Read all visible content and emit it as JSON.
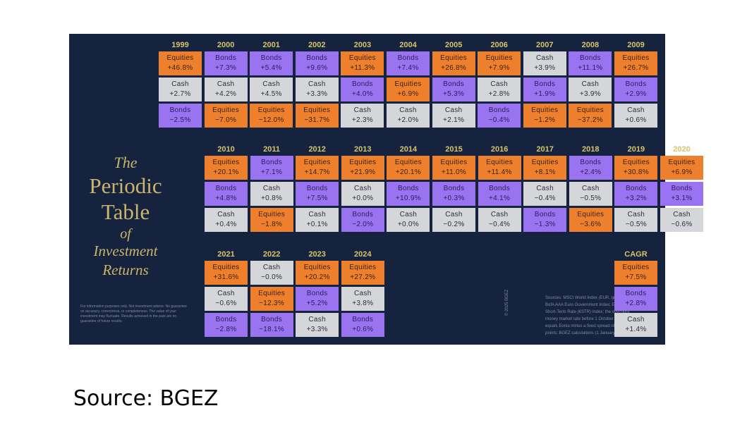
{
  "title": {
    "line1": "The",
    "line2": "Periodic",
    "line3": "Table",
    "line4": "of",
    "line5": "Investment",
    "line6": "Returns"
  },
  "disclaimer": "For information purposes only. Not investment advice. No guarantee on accuracy, correctness, or completeness. The value of your investment may fluctuate. Results achieved in the past are no guarantee of future results.",
  "sources": "Sources: MSCI World Index (EUR, gross); ICE BofA AAA Euro Government Index; Euro Short-Term Rate (€STR) Index; the overnight money market rate before 1 October 2019 equals Eonia minus a fixed spread of 8.5 basis points; BGEZ calculations (1 January 2025)",
  "copyright": "© 2025 BGEZ",
  "source_caption": "Source: BGEZ",
  "colors": {
    "background": "#15233f",
    "equities": "#ee7f2d",
    "bonds": "#9a73f0",
    "cash": "#d4d6da",
    "year": "#d6c46a",
    "title": "#cbb56a"
  },
  "chart_data": {
    "type": "table",
    "title": "The Periodic Table of Investment Returns",
    "categories": [
      "1999",
      "2000",
      "2001",
      "2002",
      "2003",
      "2004",
      "2005",
      "2006",
      "2007",
      "2008",
      "2009",
      "2010",
      "2011",
      "2012",
      "2013",
      "2014",
      "2015",
      "2016",
      "2017",
      "2018",
      "2019",
      "2020",
      "2021",
      "2022",
      "2023",
      "2024",
      "CAGR"
    ],
    "columns": [
      {
        "year": "1999",
        "cells": [
          {
            "asset": "Equities",
            "value": "+46.8%"
          },
          {
            "asset": "Cash",
            "value": "+2.7%"
          },
          {
            "asset": "Bonds",
            "value": "−2.5%"
          }
        ]
      },
      {
        "year": "2000",
        "cells": [
          {
            "asset": "Bonds",
            "value": "+7.3%"
          },
          {
            "asset": "Cash",
            "value": "+4.2%"
          },
          {
            "asset": "Equities",
            "value": "−7.0%"
          }
        ]
      },
      {
        "year": "2001",
        "cells": [
          {
            "asset": "Bonds",
            "value": "+5.4%"
          },
          {
            "asset": "Cash",
            "value": "+4.5%"
          },
          {
            "asset": "Equities",
            "value": "−12.0%"
          }
        ]
      },
      {
        "year": "2002",
        "cells": [
          {
            "asset": "Bonds",
            "value": "+9.6%"
          },
          {
            "asset": "Cash",
            "value": "+3.3%"
          },
          {
            "asset": "Equities",
            "value": "−31.7%"
          }
        ]
      },
      {
        "year": "2003",
        "cells": [
          {
            "asset": "Equities",
            "value": "+11.3%"
          },
          {
            "asset": "Bonds",
            "value": "+4.0%"
          },
          {
            "asset": "Cash",
            "value": "+2.3%"
          }
        ]
      },
      {
        "year": "2004",
        "cells": [
          {
            "asset": "Bonds",
            "value": "+7.4%"
          },
          {
            "asset": "Equities",
            "value": "+6.9%"
          },
          {
            "asset": "Cash",
            "value": "+2.0%"
          }
        ]
      },
      {
        "year": "2005",
        "cells": [
          {
            "asset": "Equities",
            "value": "+26.8%"
          },
          {
            "asset": "Bonds",
            "value": "+5.3%"
          },
          {
            "asset": "Cash",
            "value": "+2.1%"
          }
        ]
      },
      {
        "year": "2006",
        "cells": [
          {
            "asset": "Equities",
            "value": "+7.9%"
          },
          {
            "asset": "Cash",
            "value": "+2.8%"
          },
          {
            "asset": "Bonds",
            "value": "−0.4%"
          }
        ]
      },
      {
        "year": "2007",
        "cells": [
          {
            "asset": "Cash",
            "value": "+3.9%"
          },
          {
            "asset": "Bonds",
            "value": "+1.9%"
          },
          {
            "asset": "Equities",
            "value": "−1.2%"
          }
        ]
      },
      {
        "year": "2008",
        "cells": [
          {
            "asset": "Bonds",
            "value": "+11.1%"
          },
          {
            "asset": "Cash",
            "value": "+3.9%"
          },
          {
            "asset": "Equities",
            "value": "−37.2%"
          }
        ]
      },
      {
        "year": "2009",
        "cells": [
          {
            "asset": "Equities",
            "value": "+26.7%"
          },
          {
            "asset": "Bonds",
            "value": "+2.9%"
          },
          {
            "asset": "Cash",
            "value": "+0.6%"
          }
        ]
      },
      {
        "year": "2010",
        "cells": [
          {
            "asset": "Equities",
            "value": "+20.1%"
          },
          {
            "asset": "Bonds",
            "value": "+4.8%"
          },
          {
            "asset": "Cash",
            "value": "+0.4%"
          }
        ]
      },
      {
        "year": "2011",
        "cells": [
          {
            "asset": "Bonds",
            "value": "+7.1%"
          },
          {
            "asset": "Cash",
            "value": "+0.8%"
          },
          {
            "asset": "Equities",
            "value": "−1.8%"
          }
        ]
      },
      {
        "year": "2012",
        "cells": [
          {
            "asset": "Equities",
            "value": "+14.7%"
          },
          {
            "asset": "Bonds",
            "value": "+7.5%"
          },
          {
            "asset": "Cash",
            "value": "+0.1%"
          }
        ]
      },
      {
        "year": "2013",
        "cells": [
          {
            "asset": "Equities",
            "value": "+21.9%"
          },
          {
            "asset": "Cash",
            "value": "+0.0%"
          },
          {
            "asset": "Bonds",
            "value": "−2.0%"
          }
        ]
      },
      {
        "year": "2014",
        "cells": [
          {
            "asset": "Equities",
            "value": "+20.1%"
          },
          {
            "asset": "Bonds",
            "value": "+10.9%"
          },
          {
            "asset": "Cash",
            "value": "+0.0%"
          }
        ]
      },
      {
        "year": "2015",
        "cells": [
          {
            "asset": "Equities",
            "value": "+11.0%"
          },
          {
            "asset": "Bonds",
            "value": "+0.3%"
          },
          {
            "asset": "Cash",
            "value": "−0.2%"
          }
        ]
      },
      {
        "year": "2016",
        "cells": [
          {
            "asset": "Equities",
            "value": "+11.4%"
          },
          {
            "asset": "Bonds",
            "value": "+4.1%"
          },
          {
            "asset": "Cash",
            "value": "−0.4%"
          }
        ]
      },
      {
        "year": "2017",
        "cells": [
          {
            "asset": "Equities",
            "value": "+8.1%"
          },
          {
            "asset": "Cash",
            "value": "−0.4%"
          },
          {
            "asset": "Bonds",
            "value": "−1.3%"
          }
        ]
      },
      {
        "year": "2018",
        "cells": [
          {
            "asset": "Bonds",
            "value": "+2.4%"
          },
          {
            "asset": "Cash",
            "value": "−0.5%"
          },
          {
            "asset": "Equities",
            "value": "−3.6%"
          }
        ]
      },
      {
        "year": "2019",
        "cells": [
          {
            "asset": "Equities",
            "value": "+30.8%"
          },
          {
            "asset": "Bonds",
            "value": "+3.2%"
          },
          {
            "asset": "Cash",
            "value": "−0.5%"
          }
        ]
      },
      {
        "year": "2020",
        "cells": [
          {
            "asset": "Equities",
            "value": "+6.9%"
          },
          {
            "asset": "Bonds",
            "value": "+3.1%"
          },
          {
            "asset": "Cash",
            "value": "−0.6%"
          }
        ]
      },
      {
        "year": "2021",
        "cells": [
          {
            "asset": "Equities",
            "value": "+31.6%"
          },
          {
            "asset": "Cash",
            "value": "−0.6%"
          },
          {
            "asset": "Bonds",
            "value": "−2.8%"
          }
        ]
      },
      {
        "year": "2022",
        "cells": [
          {
            "asset": "Cash",
            "value": "−0.0%"
          },
          {
            "asset": "Equities",
            "value": "−12.3%"
          },
          {
            "asset": "Bonds",
            "value": "−18.1%"
          }
        ]
      },
      {
        "year": "2023",
        "cells": [
          {
            "asset": "Equities",
            "value": "+20.2%"
          },
          {
            "asset": "Bonds",
            "value": "+5.2%"
          },
          {
            "asset": "Cash",
            "value": "+3.3%"
          }
        ]
      },
      {
        "year": "2024",
        "cells": [
          {
            "asset": "Equities",
            "value": "+27.2%"
          },
          {
            "asset": "Cash",
            "value": "+3.8%"
          },
          {
            "asset": "Bonds",
            "value": "+0.6%"
          }
        ]
      },
      {
        "year": "CAGR",
        "cells": [
          {
            "asset": "Equities",
            "value": "+7.5%"
          },
          {
            "asset": "Bonds",
            "value": "+2.8%"
          },
          {
            "asset": "Cash",
            "value": "+1.4%"
          }
        ]
      }
    ],
    "series": [
      {
        "name": "Equities",
        "values": [
          46.8,
          -7.0,
          -12.0,
          -31.7,
          11.3,
          6.9,
          26.8,
          7.9,
          -1.2,
          -37.2,
          26.7,
          20.1,
          -1.8,
          14.7,
          21.9,
          20.1,
          11.0,
          11.4,
          8.1,
          -3.6,
          30.8,
          6.9,
          31.6,
          -12.3,
          20.2,
          27.2,
          7.5
        ]
      },
      {
        "name": "Bonds",
        "values": [
          -2.5,
          7.3,
          5.4,
          9.6,
          4.0,
          7.4,
          5.3,
          -0.4,
          1.9,
          11.1,
          2.9,
          4.8,
          7.1,
          7.5,
          -2.0,
          10.9,
          0.3,
          4.1,
          -1.3,
          2.4,
          3.2,
          3.1,
          -2.8,
          -18.1,
          5.2,
          0.6,
          2.8
        ]
      },
      {
        "name": "Cash",
        "values": [
          2.7,
          4.2,
          4.5,
          3.3,
          2.3,
          2.0,
          2.1,
          2.8,
          3.9,
          3.9,
          0.6,
          0.4,
          0.8,
          0.1,
          0.0,
          0.0,
          -0.2,
          -0.4,
          -0.4,
          -0.5,
          -0.5,
          -0.6,
          -0.6,
          -0.0,
          3.3,
          3.8,
          1.4
        ]
      }
    ],
    "legend": [
      "Equities",
      "Bonds",
      "Cash"
    ]
  }
}
